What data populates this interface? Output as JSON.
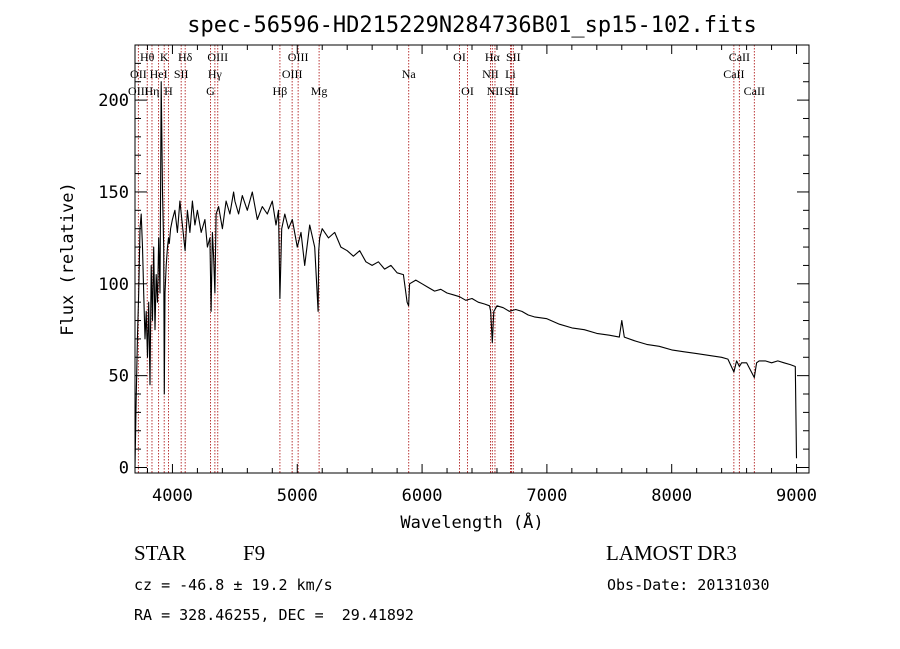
{
  "chart_data": {
    "type": "line",
    "title": "spec-56596-HD215229N284736B01_sp15-102.fits",
    "xlabel": "Wavelength (Å)",
    "ylabel": "Flux (relative)",
    "xlim": [
      3700,
      9100
    ],
    "ylim": [
      -3,
      230
    ],
    "x_ticks": [
      4000,
      5000,
      6000,
      7000,
      8000,
      9000
    ],
    "x_tick_labels": [
      "4000",
      "5000",
      "6000",
      "7000",
      "8000",
      "9000"
    ],
    "y_ticks": [
      0,
      50,
      100,
      150,
      200
    ],
    "y_tick_labels": [
      "0",
      "50",
      "100",
      "150",
      "200"
    ],
    "series": [
      {
        "name": "flux",
        "color": "#000000",
        "x": [
          3700,
          3710,
          3720,
          3730,
          3740,
          3750,
          3760,
          3770,
          3780,
          3790,
          3800,
          3810,
          3820,
          3830,
          3840,
          3850,
          3860,
          3870,
          3880,
          3890,
          3900,
          3910,
          3920,
          3930,
          3935,
          3940,
          3950,
          3960,
          3968,
          3975,
          3985,
          4000,
          4020,
          4040,
          4060,
          4080,
          4101,
          4120,
          4140,
          4160,
          4180,
          4200,
          4230,
          4260,
          4280,
          4300,
          4310,
          4320,
          4330,
          4340,
          4350,
          4370,
          4400,
          4430,
          4460,
          4490,
          4500,
          4530,
          4560,
          4600,
          4640,
          4680,
          4720,
          4760,
          4800,
          4830,
          4850,
          4861,
          4875,
          4900,
          4930,
          4960,
          5000,
          5030,
          5060,
          5100,
          5140,
          5167,
          5172,
          5180,
          5200,
          5250,
          5300,
          5350,
          5400,
          5450,
          5500,
          5550,
          5600,
          5650,
          5700,
          5750,
          5800,
          5850,
          5880,
          5892,
          5900,
          5950,
          6000,
          6050,
          6100,
          6150,
          6200,
          6250,
          6300,
          6350,
          6400,
          6450,
          6500,
          6540,
          6550,
          6563,
          6575,
          6600,
          6650,
          6700,
          6750,
          6800,
          6850,
          6900,
          7000,
          7100,
          7200,
          7300,
          7400,
          7500,
          7580,
          7600,
          7620,
          7700,
          7800,
          7900,
          8000,
          8100,
          8200,
          8300,
          8400,
          8450,
          8498,
          8520,
          8542,
          8560,
          8600,
          8662,
          8680,
          8700,
          8750,
          8800,
          8850,
          8900,
          8950,
          8990,
          9000
        ],
        "values": [
          0,
          38,
          72,
          95,
          130,
          138,
          120,
          95,
          70,
          85,
          60,
          90,
          45,
          110,
          80,
          120,
          75,
          105,
          90,
          125,
          95,
          210,
          150,
          120,
          40,
          95,
          110,
          120,
          125,
          122,
          130,
          135,
          140,
          128,
          145,
          132,
          118,
          140,
          128,
          145,
          132,
          140,
          128,
          135,
          120,
          125,
          85,
          128,
          115,
          95,
          138,
          142,
          130,
          145,
          138,
          150,
          145,
          138,
          148,
          140,
          150,
          135,
          142,
          138,
          145,
          132,
          140,
          92,
          130,
          138,
          130,
          135,
          120,
          128,
          110,
          132,
          120,
          85,
          118,
          125,
          130,
          125,
          128,
          120,
          118,
          115,
          118,
          112,
          110,
          112,
          108,
          110,
          106,
          105,
          90,
          88,
          100,
          102,
          100,
          98,
          96,
          97,
          95,
          94,
          93,
          91,
          92,
          90,
          89,
          88,
          85,
          68,
          85,
          88,
          87,
          85,
          86,
          85,
          83,
          82,
          81,
          78,
          76,
          75,
          73,
          72,
          71,
          80,
          71,
          69,
          67,
          66,
          64,
          63,
          62,
          61,
          60,
          59,
          52,
          58,
          55,
          57,
          57,
          49,
          57,
          58,
          58,
          57,
          58,
          57,
          56,
          55,
          5
        ]
      }
    ],
    "line_markers": [
      {
        "label": "Hθ",
        "wavelength": 3798,
        "row": 1
      },
      {
        "label": "OII",
        "wavelength": 3727,
        "row": 2
      },
      {
        "label": "OIII",
        "wavelength": 3727,
        "row": 3
      },
      {
        "label": "Hη",
        "wavelength": 3836,
        "row": 3
      },
      {
        "label": "HeI",
        "wavelength": 3889,
        "row": 2
      },
      {
        "label": "K",
        "wavelength": 3934,
        "row": 1
      },
      {
        "label": "SII",
        "wavelength": 4070,
        "row": 2
      },
      {
        "label": "H",
        "wavelength": 3968,
        "row": 3
      },
      {
        "label": "Hδ",
        "wavelength": 4102,
        "row": 1
      },
      {
        "label": "OIII",
        "wavelength": 4363,
        "row": 1
      },
      {
        "label": "Hγ",
        "wavelength": 4340,
        "row": 2
      },
      {
        "label": "G",
        "wavelength": 4305,
        "row": 3
      },
      {
        "label": "OIII",
        "wavelength": 5007,
        "row": 1
      },
      {
        "label": "OIII",
        "wavelength": 4959,
        "row": 2
      },
      {
        "label": "Hβ",
        "wavelength": 4861,
        "row": 3
      },
      {
        "label": "Mg",
        "wavelength": 5175,
        "row": 3
      },
      {
        "label": "Na",
        "wavelength": 5893,
        "row": 2
      },
      {
        "label": "OI",
        "wavelength": 6300,
        "row": 1
      },
      {
        "label": "OI",
        "wavelength": 6364,
        "row": 3
      },
      {
        "label": "Hα",
        "wavelength": 6563,
        "row": 1
      },
      {
        "label": "SII",
        "wavelength": 6731,
        "row": 1
      },
      {
        "label": "NII",
        "wavelength": 6548,
        "row": 2
      },
      {
        "label": "Li",
        "wavelength": 6708,
        "row": 2
      },
      {
        "label": "NII",
        "wavelength": 6584,
        "row": 3
      },
      {
        "label": "SII",
        "wavelength": 6716,
        "row": 3
      },
      {
        "label": "CaII",
        "wavelength": 8542,
        "row": 1
      },
      {
        "label": "CaII",
        "wavelength": 8498,
        "row": 2
      },
      {
        "label": "CaII",
        "wavelength": 8662,
        "row": 3
      }
    ]
  },
  "info": {
    "object_class": "STAR",
    "subclass": "F9",
    "survey": "LAMOST DR3",
    "redshift": "cz = -46.8 ± 19.2 km/s",
    "obs_date": "Obs-Date: 20131030",
    "coords": "RA = 328.46255, DEC =  29.41892"
  },
  "colors": {
    "marker_line": "#b22222",
    "axis": "#000000",
    "spectrum": "#000000"
  }
}
